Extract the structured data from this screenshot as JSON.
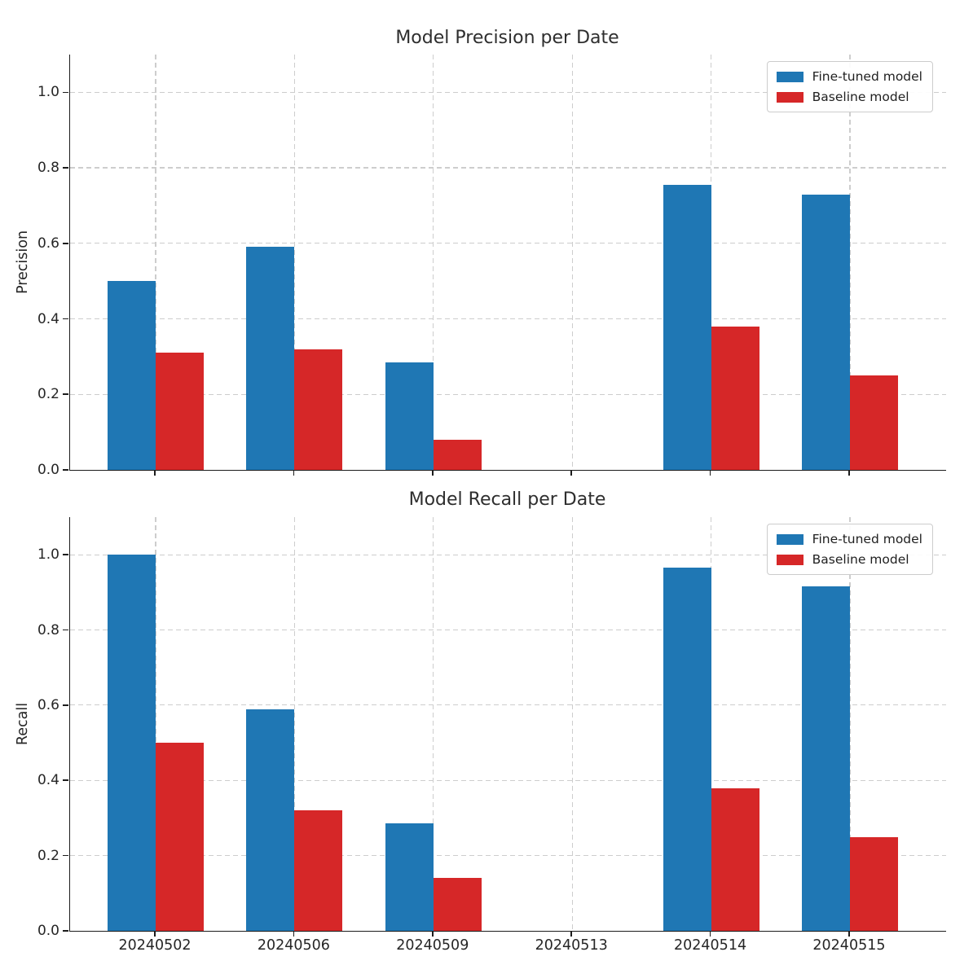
{
  "figure": {
    "background": "#ffffff",
    "grid_color": "#cdcdcd",
    "spine_color": "#1c1c1c",
    "text_color": "#262626"
  },
  "chart_data": [
    {
      "type": "bar",
      "title": "Model Precision per Date",
      "xlabel": "",
      "ylabel": "Precision",
      "categories": [
        "20240502",
        "20240506",
        "20240509",
        "20240513",
        "20240514",
        "20240515"
      ],
      "series": [
        {
          "name": "Fine-tuned model",
          "color": "#1f77b4",
          "values": [
            0.5,
            0.59,
            0.285,
            0,
            0.755,
            0.73
          ]
        },
        {
          "name": "Baseline model",
          "color": "#d62728",
          "values": [
            0.31,
            0.32,
            0.08,
            0,
            0.38,
            0.25
          ]
        }
      ],
      "ylim": [
        0,
        1.1
      ],
      "yticks": [
        0.0,
        0.2,
        0.4,
        0.6,
        0.8,
        1.0
      ],
      "grid": true,
      "legend_position": "upper right",
      "show_x_tick_labels": false
    },
    {
      "type": "bar",
      "title": "Model Recall per Date",
      "xlabel": "",
      "ylabel": "Recall",
      "categories": [
        "20240502",
        "20240506",
        "20240509",
        "20240513",
        "20240514",
        "20240515"
      ],
      "series": [
        {
          "name": "Fine-tuned model",
          "color": "#1f77b4",
          "values": [
            1.0,
            0.59,
            0.285,
            0,
            0.965,
            0.915
          ]
        },
        {
          "name": "Baseline model",
          "color": "#d62728",
          "values": [
            0.5,
            0.32,
            0.14,
            0,
            0.38,
            0.25
          ]
        }
      ],
      "ylim": [
        0,
        1.1
      ],
      "yticks": [
        0.0,
        0.2,
        0.4,
        0.6,
        0.8,
        1.0
      ],
      "grid": true,
      "legend_position": "upper right",
      "show_x_tick_labels": true
    }
  ]
}
